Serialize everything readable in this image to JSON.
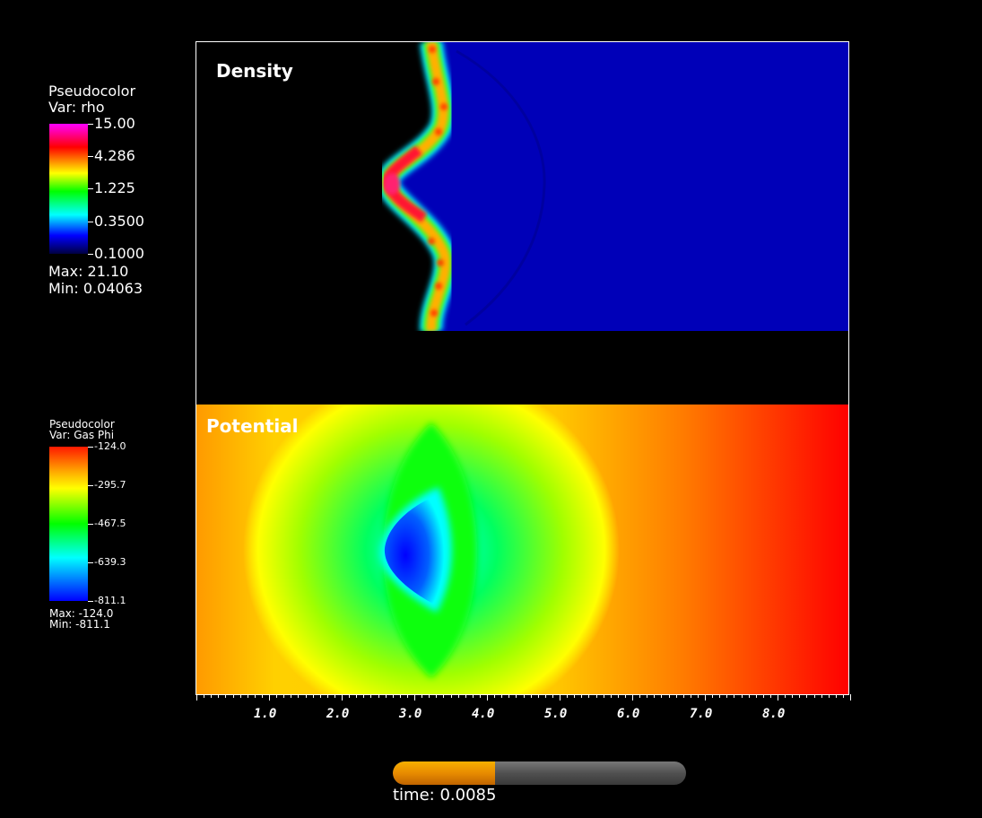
{
  "density_legend": {
    "plot_type": "Pseudocolor",
    "var": "Var: rho",
    "tick_labels": [
      "15.00",
      "4.286",
      "1.225",
      "0.3500",
      "0.1000"
    ],
    "max": "Max:  21.10",
    "min": "Min:  0.04063",
    "colormap": [
      "#ff00ff",
      "#ff0000",
      "#ffff00",
      "#00ff00",
      "#00ffff",
      "#0000ff",
      "#000000"
    ]
  },
  "potential_legend": {
    "plot_type": "Pseudocolor",
    "var": "Var: Gas Phi",
    "tick_labels": [
      "-124.0",
      "-295.7",
      "-467.5",
      "-639.3",
      "-811.1"
    ],
    "max": "Max: -124.0",
    "min": "Min: -811.1",
    "colormap": [
      "#ff0000",
      "#ffff00",
      "#00ff00",
      "#00ffff",
      "#0000ff"
    ]
  },
  "panels": {
    "density_title": "Density",
    "potential_title": "Potential"
  },
  "x_axis": {
    "tick_labels": [
      "1.0",
      "2.0",
      "3.0",
      "4.0",
      "5.0",
      "6.0",
      "7.0",
      "8.0"
    ]
  },
  "time_slider": {
    "progress": 0.35,
    "label": "time: 0.0085"
  }
}
